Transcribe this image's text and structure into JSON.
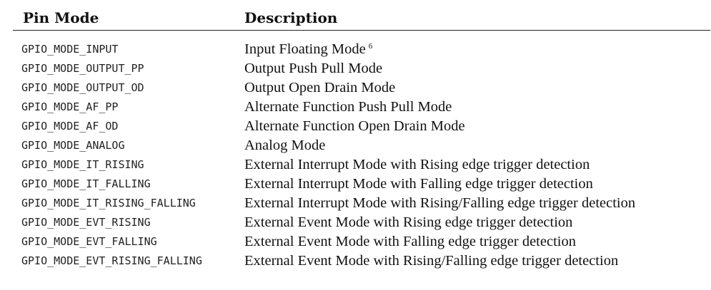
{
  "table": {
    "headers": {
      "mode": "Pin Mode",
      "description": "Description"
    },
    "rows": [
      {
        "mode": "GPIO_MODE_INPUT",
        "description": "Input Floating Mode",
        "footnote": "6"
      },
      {
        "mode": "GPIO_MODE_OUTPUT_PP",
        "description": "Output Push Pull Mode"
      },
      {
        "mode": "GPIO_MODE_OUTPUT_OD",
        "description": "Output Open Drain Mode"
      },
      {
        "mode": "GPIO_MODE_AF_PP",
        "description": "Alternate Function Push Pull Mode"
      },
      {
        "mode": "GPIO_MODE_AF_OD",
        "description": "Alternate Function Open Drain Mode"
      },
      {
        "mode": "GPIO_MODE_ANALOG",
        "description": "Analog Mode"
      },
      {
        "mode": "GPIO_MODE_IT_RISING",
        "description": "External Interrupt Mode with Rising edge trigger detection"
      },
      {
        "mode": "GPIO_MODE_IT_FALLING",
        "description": "External Interrupt Mode with Falling edge trigger detection"
      },
      {
        "mode": "GPIO_MODE_IT_RISING_FALLING",
        "description": "External Interrupt Mode with Rising/Falling edge trigger detection"
      },
      {
        "mode": "GPIO_MODE_EVT_RISING",
        "description": "External Event Mode with Rising edge trigger detection"
      },
      {
        "mode": "GPIO_MODE_EVT_FALLING",
        "description": "External Event Mode with Falling edge trigger detection"
      },
      {
        "mode": "GPIO_MODE_EVT_RISING_FALLING",
        "description": "External Event Mode with Rising/Falling edge trigger detection"
      }
    ]
  }
}
